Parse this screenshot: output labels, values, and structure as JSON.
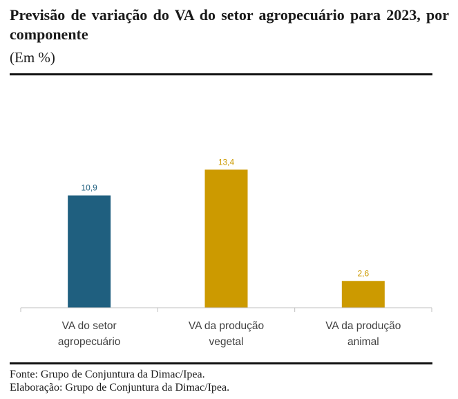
{
  "header": {
    "title": "Previsão de variação do VA do setor agropecuário para 2023, por componente",
    "subtitle": "(Em %)"
  },
  "footer": {
    "source": "Fonte: Grupo de Conjuntura da Dimac/Ipea.",
    "elaboration": "Elaboração: Grupo de Conjuntura da Dimac/Ipea."
  },
  "colors": {
    "setor": "#1f5f7f",
    "componentes": "#cc9a00",
    "axis": "#bfbfbf"
  },
  "chart_data": {
    "type": "bar",
    "title": "Previsão de variação do VA do setor agropecuário para 2023, por componente",
    "subtitle": "(Em %)",
    "categories": [
      [
        "VA do setor",
        "agropecuário"
      ],
      [
        "VA da produção",
        "vegetal"
      ],
      [
        "VA da produção",
        "animal"
      ]
    ],
    "values": [
      10.9,
      13.4,
      2.6
    ],
    "value_labels": [
      "10,9",
      "13,4",
      "2,6"
    ],
    "bar_colors": [
      "#1f5f7f",
      "#cc9a00",
      "#cc9a00"
    ],
    "ylim": [
      0,
      16
    ],
    "grid": false,
    "legend": "none"
  }
}
